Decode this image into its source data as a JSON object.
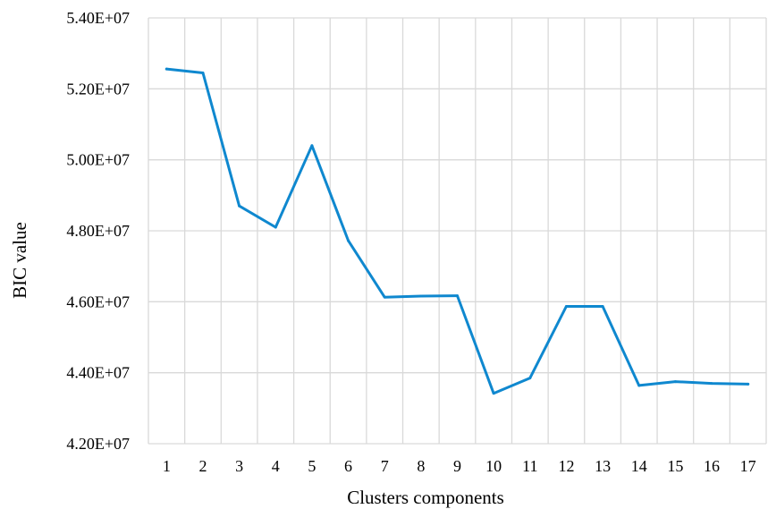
{
  "chart_data": {
    "type": "line",
    "title": "",
    "xlabel": "Clusters components",
    "ylabel": "BIC value",
    "x": [
      1,
      2,
      3,
      4,
      5,
      6,
      7,
      8,
      9,
      10,
      11,
      12,
      13,
      14,
      15,
      16,
      17
    ],
    "x_tick_labels": [
      "1",
      "2",
      "3",
      "4",
      "5",
      "6",
      "7",
      "8",
      "9",
      "10",
      "11",
      "12",
      "13",
      "14",
      "15",
      "16",
      "17"
    ],
    "series": [
      {
        "values": [
          52560000,
          52450000,
          48700000,
          48100000,
          50400000,
          47720000,
          46130000,
          46160000,
          46170000,
          43420000,
          43850000,
          45870000,
          45870000,
          43640000,
          43750000,
          43700000,
          43680000
        ]
      }
    ],
    "ylim": [
      42000000,
      54000000
    ],
    "y_ticks": [
      42000000,
      44000000,
      46000000,
      48000000,
      50000000,
      52000000,
      54000000
    ],
    "y_tick_labels": [
      "4.20E+07",
      "4.40E+07",
      "4.60E+07",
      "4.80E+07",
      "5.00E+07",
      "5.20E+07",
      "5.40E+07"
    ],
    "grid": "vertical and horizontal gridlines",
    "legend": "none",
    "colors": {
      "line": "#0f88cf",
      "grid": "#d9d9d9"
    }
  }
}
